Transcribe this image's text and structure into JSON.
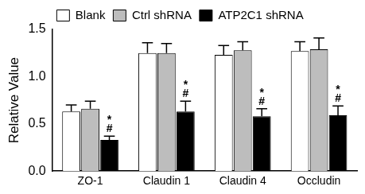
{
  "chart_data": {
    "type": "bar",
    "y_label": "Relative Value",
    "categories": [
      "ZO-1",
      "Claudin 1",
      "Claudin 4",
      "Occludin"
    ],
    "series": [
      {
        "name": "Blank",
        "color": "#ffffff",
        "values": [
          0.63,
          1.25,
          1.23,
          1.27
        ],
        "errors": [
          0.07,
          0.11,
          0.1,
          0.1
        ]
      },
      {
        "name": "Ctrl shRNA",
        "color": "#bdbdbd",
        "values": [
          0.66,
          1.25,
          1.28,
          1.29
        ],
        "errors": [
          0.08,
          0.1,
          0.09,
          0.12
        ]
      },
      {
        "name": "ATP2C1 shRNA",
        "color": "#000000",
        "values": [
          0.33,
          0.63,
          0.58,
          0.59
        ],
        "errors": [
          0.04,
          0.11,
          0.08,
          0.1
        ]
      }
    ],
    "annotations": [
      {
        "category": "ZO-1",
        "series": "ATP2C1 shRNA",
        "lines": [
          "*",
          "#"
        ]
      },
      {
        "category": "Claudin 1",
        "series": "ATP2C1 shRNA",
        "lines": [
          "*",
          "#"
        ]
      },
      {
        "category": "Claudin 4",
        "series": "ATP2C1 shRNA",
        "lines": [
          "*",
          "#"
        ]
      },
      {
        "category": "Occludin",
        "series": "ATP2C1 shRNA",
        "lines": [
          "*",
          "#"
        ]
      }
    ],
    "ylim": [
      0,
      1.5
    ],
    "yticks": [
      {
        "value": 0,
        "label": "0.0"
      },
      0.5,
      {
        "value": 1,
        "label": "1.0"
      },
      1.5
    ],
    "grid": false,
    "legend": "top"
  }
}
